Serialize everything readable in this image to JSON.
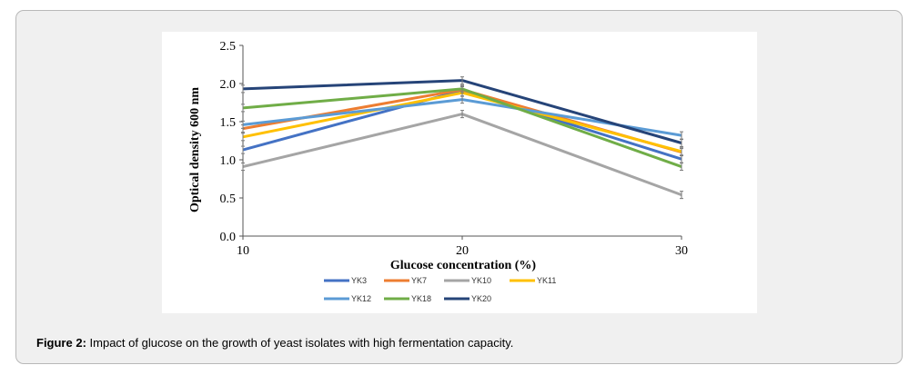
{
  "figure": {
    "label": "Figure 2:",
    "caption": "Impact of glucose on the growth of yeast isolates with high fermentation capacity."
  },
  "chart_data": {
    "type": "line",
    "title": "",
    "xlabel": "Glucose concentration (%)",
    "ylabel": "Optical density 600 nm",
    "x": [
      10,
      20,
      30
    ],
    "xticks": [
      "10",
      "20",
      "30"
    ],
    "ylim": [
      0,
      2.5
    ],
    "yticks": [
      "0.0",
      "0.5",
      "1.0",
      "1.5",
      "2.0",
      "2.5"
    ],
    "grid": false,
    "legend_position": "bottom",
    "series": [
      {
        "name": "YK3",
        "color": "#4472c4",
        "values": [
          1.13,
          1.91,
          1.01
        ]
      },
      {
        "name": "YK7",
        "color": "#ed7d31",
        "values": [
          1.41,
          1.92,
          1.1
        ]
      },
      {
        "name": "YK10",
        "color": "#a5a5a5",
        "values": [
          0.91,
          1.6,
          0.54
        ]
      },
      {
        "name": "YK11",
        "color": "#ffc000",
        "values": [
          1.3,
          1.88,
          1.11
        ]
      },
      {
        "name": "YK12",
        "color": "#5b9bd5",
        "values": [
          1.46,
          1.79,
          1.32
        ]
      },
      {
        "name": "YK18",
        "color": "#70ad47",
        "values": [
          1.68,
          1.93,
          0.91
        ]
      },
      {
        "name": "YK20",
        "color": "#264478",
        "values": [
          1.93,
          2.04,
          1.22
        ]
      }
    ]
  }
}
